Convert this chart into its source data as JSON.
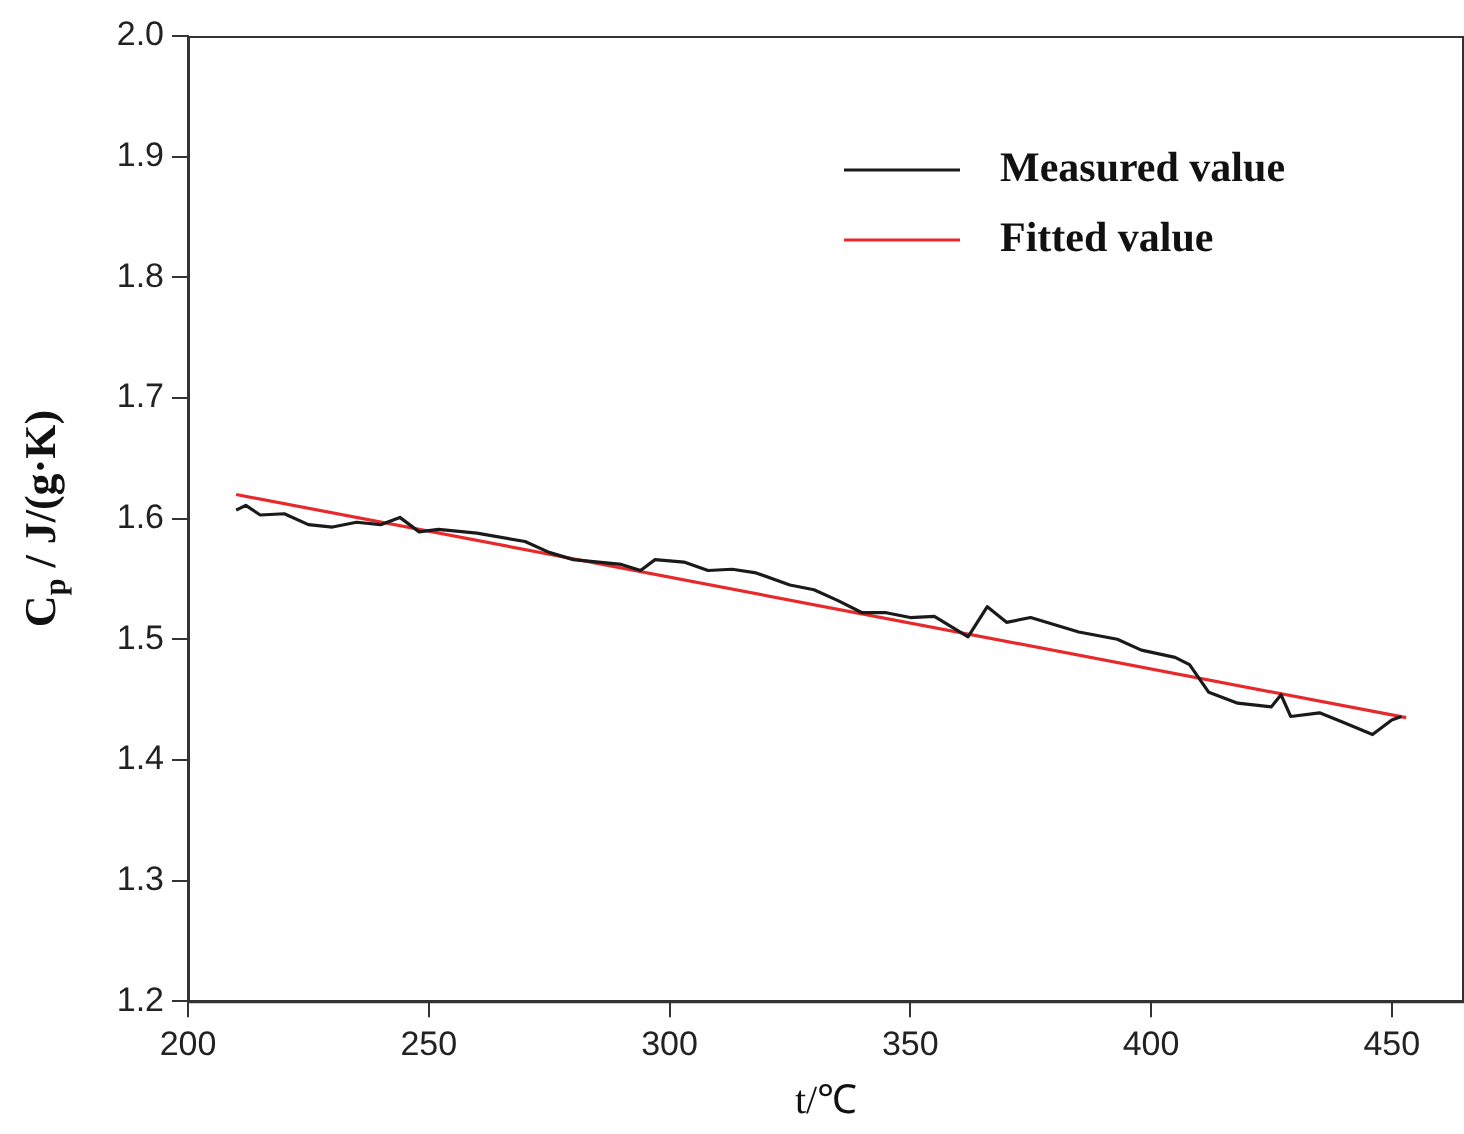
{
  "chart_data": {
    "type": "line",
    "xlabel": "t/℃",
    "ylabel": "C$_{p}$ / J/(g·K)",
    "xlim": [
      200,
      465
    ],
    "xticks": [
      200,
      250,
      300,
      350,
      400,
      450
    ],
    "ylim": [
      1.2,
      2.0
    ],
    "yticks": [
      1.2,
      1.3,
      1.4,
      1.5,
      1.6,
      1.7,
      1.8,
      1.9,
      {
        "value": 2,
        "label": "2.0"
      }
    ],
    "grid": false,
    "legend": "top right",
    "marker": "none",
    "line_style": "solid",
    "series": [
      {
        "name": "Measured value",
        "color": "#1a1a1a",
        "x": [
          210,
          212,
          215,
          220,
          225,
          230,
          235,
          240,
          244,
          248,
          252,
          260,
          270,
          275,
          280,
          290,
          294,
          297,
          303,
          308,
          313,
          318,
          325,
          330,
          335,
          340,
          345,
          350,
          355,
          362,
          366,
          370,
          375,
          385,
          393,
          398,
          405,
          408,
          412,
          418,
          425,
          427,
          429,
          435,
          440,
          446,
          450,
          452
        ],
        "values": [
          1.607,
          1.611,
          1.603,
          1.604,
          1.595,
          1.593,
          1.597,
          1.595,
          1.601,
          1.589,
          1.591,
          1.588,
          1.581,
          1.572,
          1.566,
          1.562,
          1.557,
          1.566,
          1.564,
          1.557,
          1.558,
          1.555,
          1.545,
          1.541,
          1.532,
          1.522,
          1.522,
          1.518,
          1.519,
          1.502,
          1.527,
          1.514,
          1.518,
          1.506,
          1.5,
          1.491,
          1.485,
          1.479,
          1.456,
          1.447,
          1.444,
          1.454,
          1.436,
          1.439,
          1.431,
          1.421,
          1.433,
          1.436
        ]
      },
      {
        "name": "Fitted value",
        "color": "#e8292b",
        "type": "line",
        "x": [
          210,
          453
        ],
        "values": [
          1.62,
          1.435
        ]
      }
    ]
  }
}
